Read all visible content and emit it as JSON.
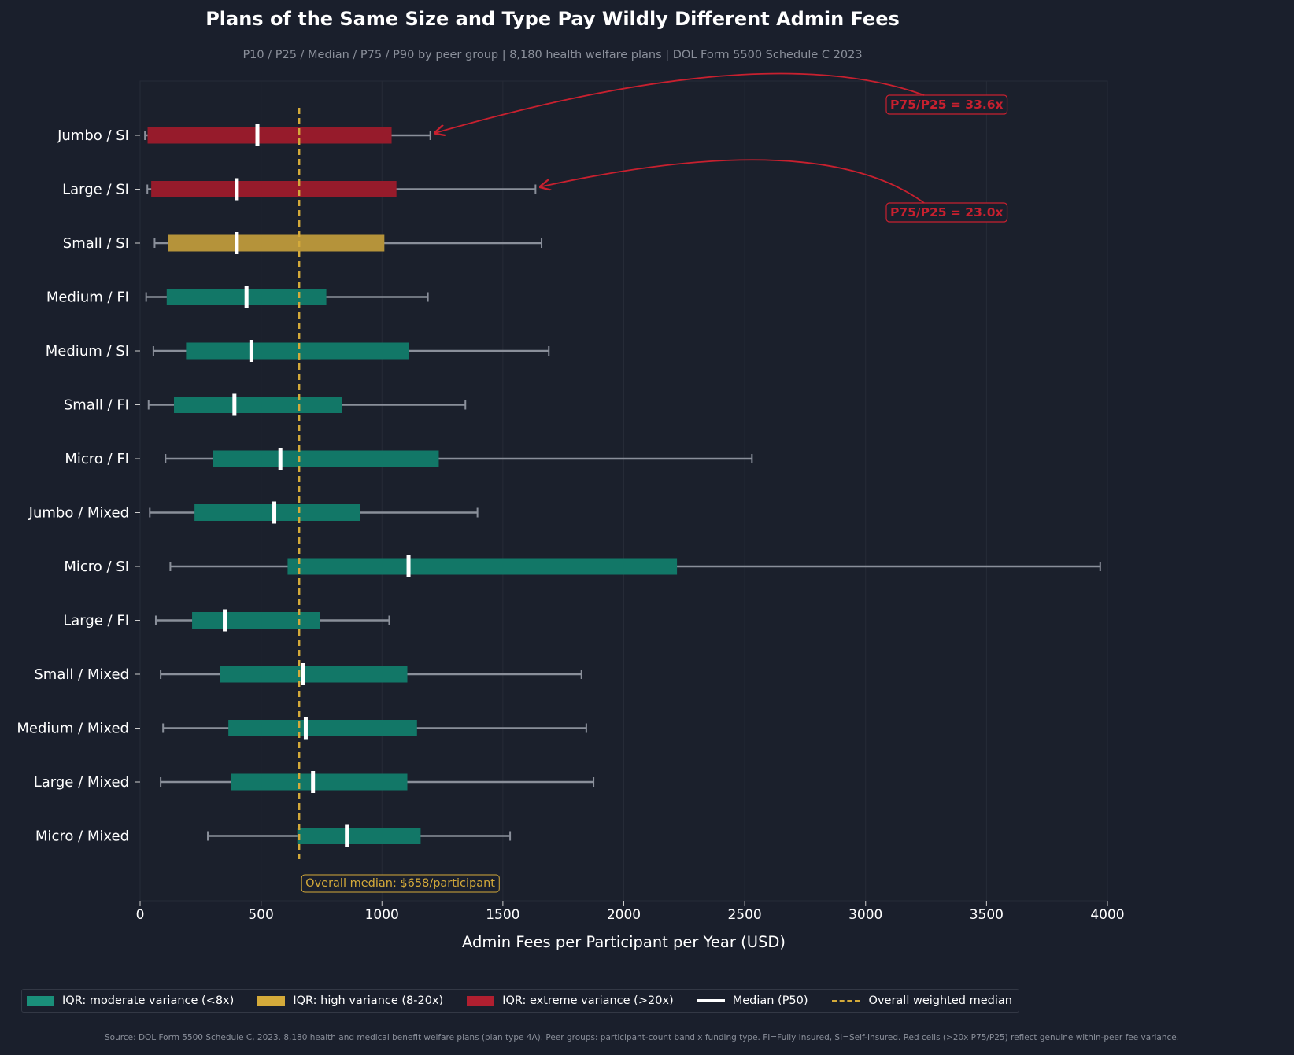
{
  "title": "Plans of the Same Size and Type Pay Wildly Different Admin Fees",
  "subtitle": "P10 / P25 / Median / P75 / P90 by peer group  |  8,180 health welfare plans  |  DOL Form 5500 Schedule C 2023",
  "colors": {
    "background": "#1a1f2c",
    "moderate": "#127767",
    "moderate_legend": "#1a8f7a",
    "high": "#b5933a",
    "high_legend": "#d4aa3a",
    "extreme": "#961b2b",
    "extreme_legend": "#b01f30",
    "median_line": "#ffffff",
    "overall_median": "#d4aa3a",
    "whisker": "#8a8f9a",
    "annotation": "#c8202f"
  },
  "chart_data": {
    "type": "box",
    "xlabel": "Admin Fees per Participant per Year (USD)",
    "xlim": [
      0,
      4000
    ],
    "xticks": [
      0,
      500,
      1000,
      1500,
      2000,
      2500,
      3000,
      3500,
      4000
    ],
    "overall_median": 658,
    "overall_median_label": "Overall median: $658/participant",
    "groups": [
      {
        "label": "Jumbo / SI",
        "p10": 20,
        "p25": 31,
        "median": 485,
        "p75": 1040,
        "p90": 1200,
        "variance": "extreme"
      },
      {
        "label": "Large / SI",
        "p10": 30,
        "p25": 46,
        "median": 400,
        "p75": 1060,
        "p90": 1635,
        "variance": "extreme"
      },
      {
        "label": "Small / SI",
        "p10": 60,
        "p25": 115,
        "median": 400,
        "p75": 1010,
        "p90": 1660,
        "variance": "high"
      },
      {
        "label": "Medium / FI",
        "p10": 25,
        "p25": 110,
        "median": 440,
        "p75": 770,
        "p90": 1190,
        "variance": "moderate"
      },
      {
        "label": "Medium / SI",
        "p10": 55,
        "p25": 190,
        "median": 460,
        "p75": 1110,
        "p90": 1690,
        "variance": "moderate"
      },
      {
        "label": "Small / FI",
        "p10": 35,
        "p25": 140,
        "median": 390,
        "p75": 835,
        "p90": 1345,
        "variance": "moderate"
      },
      {
        "label": "Micro / FI",
        "p10": 105,
        "p25": 300,
        "median": 580,
        "p75": 1235,
        "p90": 2530,
        "variance": "moderate"
      },
      {
        "label": "Jumbo / Mixed",
        "p10": 40,
        "p25": 225,
        "median": 555,
        "p75": 910,
        "p90": 1395,
        "variance": "moderate"
      },
      {
        "label": "Micro / SI",
        "p10": 125,
        "p25": 610,
        "median": 1110,
        "p75": 2220,
        "p90": 3970,
        "variance": "moderate"
      },
      {
        "label": "Large / FI",
        "p10": 65,
        "p25": 215,
        "median": 350,
        "p75": 745,
        "p90": 1030,
        "variance": "moderate"
      },
      {
        "label": "Small / Mixed",
        "p10": 85,
        "p25": 330,
        "median": 675,
        "p75": 1105,
        "p90": 1825,
        "variance": "moderate"
      },
      {
        "label": "Medium / Mixed",
        "p10": 95,
        "p25": 365,
        "median": 685,
        "p75": 1145,
        "p90": 1845,
        "variance": "moderate"
      },
      {
        "label": "Large / Mixed",
        "p10": 85,
        "p25": 375,
        "median": 715,
        "p75": 1105,
        "p90": 1875,
        "variance": "moderate"
      },
      {
        "label": "Micro / Mixed",
        "p10": 280,
        "p25": 650,
        "median": 855,
        "p75": 1160,
        "p90": 1530,
        "variance": "moderate"
      }
    ],
    "annotations": [
      {
        "text": "P75/P25 = 33.6x",
        "group": "Jumbo / SI"
      },
      {
        "text": "P75/P25 = 23.0x",
        "group": "Large / SI"
      }
    ],
    "legend": {
      "position": "bottom",
      "items": [
        {
          "label": "IQR: moderate variance (<8x)",
          "kind": "moderate"
        },
        {
          "label": "IQR: high variance (8-20x)",
          "kind": "high"
        },
        {
          "label": "IQR: extreme variance (>20x)",
          "kind": "extreme"
        },
        {
          "label": "Median (P50)",
          "kind": "median"
        },
        {
          "label": "Overall weighted median",
          "kind": "overall"
        }
      ]
    }
  },
  "source": "Source: DOL Form 5500 Schedule C, 2023. 8,180 health and medical benefit welfare plans (plan type 4A). Peer groups: participant-count band x funding type. FI=Fully Insured, SI=Self-Insured. Red cells (>20x P75/P25) reflect genuine within-peer fee variance."
}
